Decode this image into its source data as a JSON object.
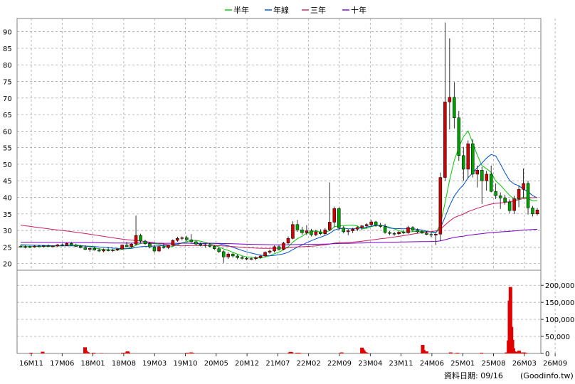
{
  "chart_data": {
    "type": "candlestick",
    "legend": [
      {
        "name": "半年",
        "color": "#00c800"
      },
      {
        "name": "年線",
        "color": "#0050d0"
      },
      {
        "name": "三年",
        "color": "#c81e64"
      },
      {
        "name": "十年",
        "color": "#7800c8"
      }
    ],
    "x_labels": [
      "16M11",
      "17M06",
      "18M01",
      "18M08",
      "19M03",
      "19M10",
      "20M05",
      "20M12",
      "21M07",
      "22M02",
      "22M09",
      "23M04",
      "23M11",
      "24M06",
      "25M01",
      "25M08",
      "26M03",
      "26M09"
    ],
    "price_axis": {
      "ylim": [
        18,
        94
      ],
      "ticks": [
        20,
        25,
        30,
        35,
        40,
        45,
        50,
        55,
        60,
        65,
        70,
        75,
        80,
        85,
        90
      ]
    },
    "volume_axis": {
      "ylim": [
        0,
        240000
      ],
      "ticks": [
        0,
        50000,
        100000,
        150000,
        200000
      ],
      "tick_labels": [
        "0",
        "50,000",
        "100,000",
        "150,000",
        "200,000"
      ]
    },
    "grid": true,
    "legend_position": "top",
    "up_color": "#d00000",
    "down_color": "#00a000",
    "candles_ohlc": [
      [
        25.2,
        25.6,
        24.8,
        25.0
      ],
      [
        25.0,
        25.5,
        24.6,
        25.1
      ],
      [
        25.1,
        25.4,
        24.7,
        25.0
      ],
      [
        25.0,
        25.6,
        24.8,
        25.3
      ],
      [
        25.3,
        25.7,
        25.0,
        25.2
      ],
      [
        25.2,
        25.6,
        24.9,
        25.4
      ],
      [
        25.4,
        25.8,
        25.1,
        25.2
      ],
      [
        25.2,
        25.5,
        24.9,
        25.3
      ],
      [
        25.3,
        25.9,
        25.1,
        25.7
      ],
      [
        25.7,
        26.1,
        25.3,
        25.5
      ],
      [
        25.5,
        26.3,
        25.3,
        26.1
      ],
      [
        26.1,
        26.5,
        25.4,
        25.6
      ],
      [
        25.6,
        26.0,
        25.0,
        25.2
      ],
      [
        25.2,
        25.6,
        24.6,
        24.8
      ],
      [
        24.8,
        25.5,
        24.0,
        24.3
      ],
      [
        24.3,
        24.9,
        23.6,
        24.6
      ],
      [
        24.6,
        25.0,
        23.9,
        24.1
      ],
      [
        24.1,
        24.6,
        23.5,
        23.8
      ],
      [
        23.8,
        24.6,
        23.4,
        24.2
      ],
      [
        24.2,
        24.8,
        23.7,
        23.9
      ],
      [
        23.9,
        24.5,
        23.5,
        24.1
      ],
      [
        24.1,
        24.7,
        23.8,
        24.4
      ],
      [
        24.4,
        25.8,
        24.2,
        25.6
      ],
      [
        25.6,
        26.6,
        24.9,
        25.1
      ],
      [
        25.1,
        26.1,
        24.8,
        25.9
      ],
      [
        25.9,
        34.5,
        25.4,
        28.5
      ],
      [
        28.5,
        29.0,
        26.3,
        26.8
      ],
      [
        26.8,
        27.2,
        25.6,
        26.0
      ],
      [
        26.0,
        26.5,
        24.6,
        25.0
      ],
      [
        25.0,
        25.6,
        23.3,
        23.8
      ],
      [
        23.8,
        25.4,
        23.5,
        25.1
      ],
      [
        25.1,
        26.1,
        24.5,
        24.8
      ],
      [
        24.8,
        25.7,
        24.4,
        25.5
      ],
      [
        25.5,
        27.3,
        25.3,
        27.0
      ],
      [
        27.0,
        28.1,
        26.6,
        27.6
      ],
      [
        27.6,
        28.2,
        27.0,
        27.8
      ],
      [
        27.8,
        28.4,
        26.8,
        27.2
      ],
      [
        27.2,
        28.9,
        26.4,
        26.6
      ],
      [
        26.6,
        27.1,
        25.6,
        25.9
      ],
      [
        25.9,
        26.4,
        25.2,
        25.5
      ],
      [
        25.5,
        26.1,
        24.8,
        25.7
      ],
      [
        25.7,
        26.2,
        24.9,
        25.2
      ],
      [
        25.2,
        25.6,
        24.1,
        24.5
      ],
      [
        24.5,
        25.0,
        23.2,
        23.6
      ],
      [
        23.6,
        24.0,
        20.2,
        22.0
      ],
      [
        22.0,
        23.4,
        21.4,
        22.9
      ],
      [
        22.9,
        23.3,
        21.8,
        22.3
      ],
      [
        22.3,
        22.8,
        21.3,
        21.8
      ],
      [
        21.8,
        22.3,
        21.2,
        21.6
      ],
      [
        21.6,
        22.1,
        21.0,
        21.4
      ],
      [
        21.4,
        21.8,
        21.1,
        21.5
      ],
      [
        21.5,
        22.2,
        21.0,
        21.8
      ],
      [
        21.8,
        22.6,
        21.4,
        22.3
      ],
      [
        22.3,
        23.7,
        22.0,
        23.4
      ],
      [
        23.4,
        24.2,
        23.0,
        23.8
      ],
      [
        23.8,
        25.5,
        23.4,
        25.1
      ],
      [
        25.1,
        25.6,
        23.9,
        24.3
      ],
      [
        24.3,
        26.6,
        24.0,
        26.2
      ],
      [
        26.2,
        28.2,
        25.8,
        27.6
      ],
      [
        27.6,
        32.8,
        27.3,
        31.8
      ],
      [
        31.8,
        33.2,
        29.6,
        30.2
      ],
      [
        30.2,
        31.1,
        28.7,
        29.3
      ],
      [
        29.3,
        31.6,
        28.6,
        29.9
      ],
      [
        29.9,
        30.5,
        28.2,
        28.7
      ],
      [
        28.7,
        30.2,
        28.3,
        29.6
      ],
      [
        29.6,
        30.4,
        28.6,
        29.0
      ],
      [
        29.0,
        30.7,
        28.7,
        30.2
      ],
      [
        30.2,
        44.5,
        29.8,
        32.5
      ],
      [
        32.5,
        37.2,
        31.0,
        36.6
      ],
      [
        36.6,
        37.0,
        30.1,
        30.8
      ],
      [
        30.8,
        31.3,
        29.1,
        29.6
      ],
      [
        29.6,
        30.4,
        28.6,
        29.9
      ],
      [
        29.9,
        30.8,
        29.2,
        30.4
      ],
      [
        30.4,
        31.3,
        29.8,
        30.9
      ],
      [
        30.9,
        31.6,
        30.1,
        31.4
      ],
      [
        31.4,
        32.2,
        30.7,
        31.8
      ],
      [
        31.8,
        33.2,
        31.2,
        32.6
      ],
      [
        32.6,
        32.9,
        31.1,
        31.6
      ],
      [
        31.6,
        32.3,
        30.8,
        31.2
      ],
      [
        31.2,
        32.0,
        29.0,
        29.4
      ],
      [
        29.4,
        29.8,
        28.6,
        29.1
      ],
      [
        29.1,
        29.6,
        28.4,
        29.0
      ],
      [
        29.0,
        29.8,
        28.6,
        29.5
      ],
      [
        29.5,
        30.1,
        28.9,
        29.3
      ],
      [
        29.3,
        31.4,
        29.0,
        30.9
      ],
      [
        30.9,
        31.3,
        29.7,
        30.1
      ],
      [
        30.1,
        30.6,
        29.1,
        29.6
      ],
      [
        29.6,
        30.2,
        29.0,
        29.2
      ],
      [
        29.2,
        29.8,
        28.6,
        28.8
      ],
      [
        28.8,
        29.4,
        28.0,
        28.6
      ],
      [
        28.6,
        29.1,
        25.6,
        28.9
      ],
      [
        28.9,
        47.5,
        26.8,
        46.0
      ],
      [
        46.0,
        92.8,
        45.0,
        68.8
      ],
      [
        68.8,
        88.0,
        60.5,
        70.2
      ],
      [
        70.2,
        74.8,
        60.8,
        64.0
      ],
      [
        64.0,
        66.1,
        51.0,
        52.6
      ],
      [
        52.6,
        55.2,
        45.0,
        48.5
      ],
      [
        48.5,
        57.2,
        45.8,
        56.2
      ],
      [
        56.2,
        57.6,
        46.0,
        47.0
      ],
      [
        47.0,
        49.6,
        43.0,
        48.2
      ],
      [
        48.2,
        49.2,
        38.0,
        45.0
      ],
      [
        45.0,
        48.0,
        42.0,
        47.0
      ],
      [
        47.0,
        49.6,
        41.5,
        41.8
      ],
      [
        41.8,
        44.2,
        39.5,
        40.5
      ],
      [
        40.5,
        41.5,
        36.5,
        39.8
      ],
      [
        39.8,
        40.8,
        37.8,
        38.6
      ],
      [
        38.6,
        39.4,
        35.2,
        36.0
      ],
      [
        36.0,
        40.5,
        35.0,
        39.6
      ],
      [
        39.6,
        43.6,
        37.0,
        42.4
      ],
      [
        42.4,
        48.7,
        39.8,
        44.2
      ],
      [
        44.2,
        45.0,
        34.8,
        36.8
      ],
      [
        36.8,
        37.4,
        34.2,
        35.0
      ],
      [
        35.0,
        36.8,
        34.5,
        36.2
      ]
    ],
    "volume_spikes": [
      [
        13,
        2000
      ],
      [
        25,
        5000
      ],
      [
        69,
        18000
      ],
      [
        70,
        8000
      ],
      [
        71,
        4000
      ],
      [
        72,
        3000
      ],
      [
        78,
        2000
      ],
      [
        86,
        1000
      ],
      [
        108,
        2000
      ],
      [
        112,
        3000
      ],
      [
        113,
        6000
      ],
      [
        114,
        3000
      ],
      [
        175,
        2000
      ],
      [
        179,
        3000
      ],
      [
        180,
        2000
      ],
      [
        281,
        2500
      ],
      [
        282,
        4500
      ],
      [
        283,
        3500
      ],
      [
        289,
        2000
      ],
      [
        290,
        2000
      ],
      [
        291,
        1500
      ],
      [
        291,
        1000
      ],
      [
        292,
        1000
      ],
      [
        335,
        3000
      ],
      [
        356,
        17000
      ],
      [
        357,
        12000
      ],
      [
        358,
        8000
      ],
      [
        359,
        4000
      ],
      [
        360,
        3000
      ],
      [
        361,
        2000
      ],
      [
        419,
        25000
      ],
      [
        420,
        10000
      ],
      [
        422,
        2500
      ],
      [
        423,
        6000
      ],
      [
        448,
        3000
      ],
      [
        455,
        2000
      ],
      [
        480,
        2000
      ],
      [
        506,
        3000
      ],
      [
        508,
        38000
      ],
      [
        509,
        155000
      ],
      [
        510,
        195000
      ],
      [
        511,
        78000
      ],
      [
        512,
        40000
      ],
      [
        513,
        15000
      ],
      [
        514,
        6000
      ],
      [
        515,
        4000
      ],
      [
        516,
        5000
      ],
      [
        517,
        3000
      ],
      [
        518,
        4000
      ],
      [
        519,
        8000
      ],
      [
        520,
        3000
      ],
      [
        521,
        2000
      ],
      [
        522,
        1500
      ],
      [
        523,
        2000
      ],
      [
        524,
        3000
      ],
      [
        525,
        2000
      ],
      [
        526,
        1500
      ]
    ]
  },
  "footer": {
    "date_label": "資料日期: 09/16",
    "source": "(Goodinfo.tw)"
  }
}
